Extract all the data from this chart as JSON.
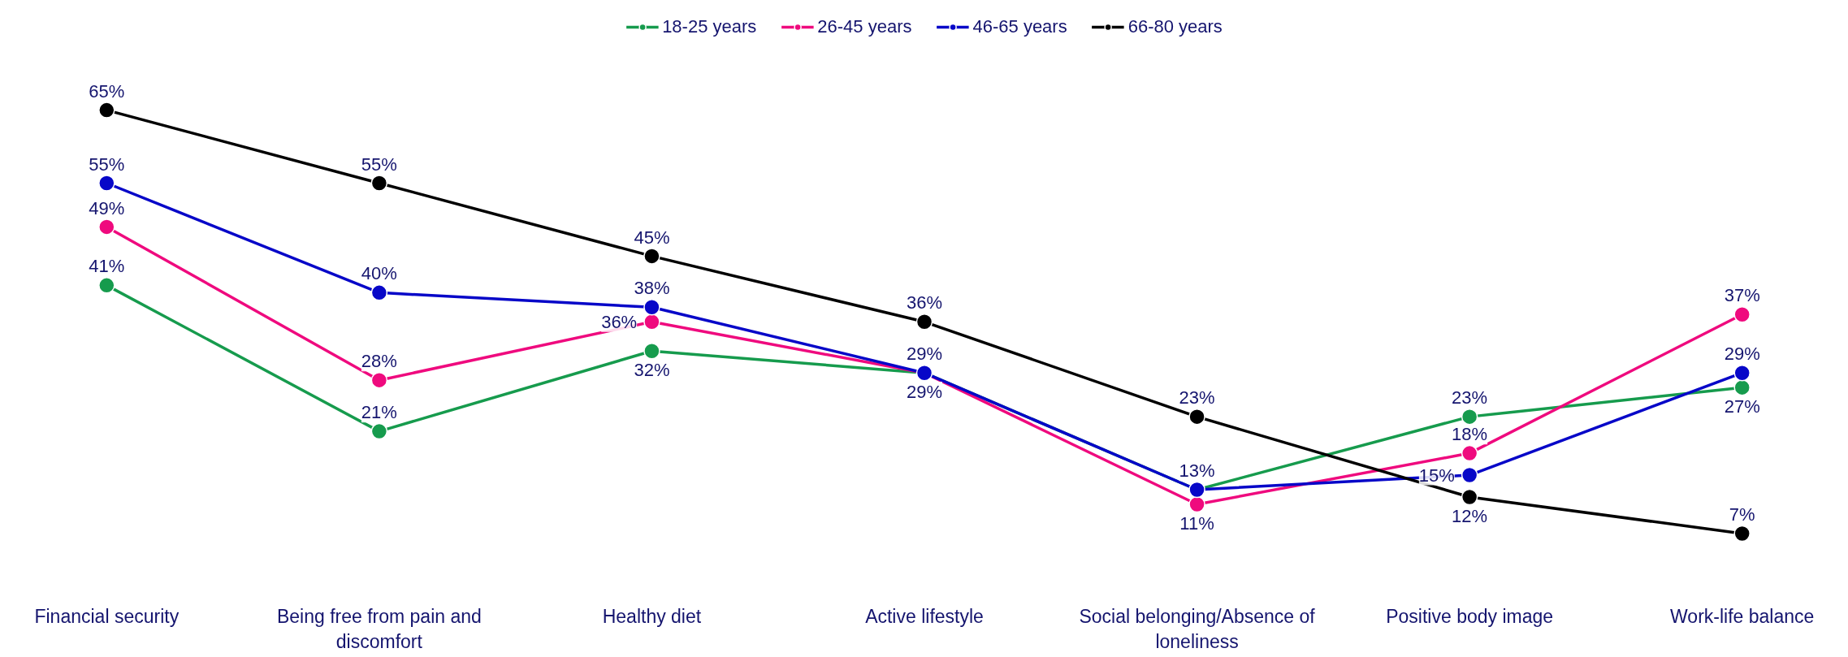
{
  "chart_data": {
    "type": "line",
    "categories": [
      "Financial security",
      "Being free from pain and discomfort",
      "Healthy diet",
      "Active lifestyle",
      "Social belonging/Absence of loneliness",
      "Positive body image",
      "Work-life balance"
    ],
    "series": [
      {
        "name": "18-25 years",
        "color": "#169b4d",
        "values": [
          41,
          21,
          32,
          29,
          13,
          23,
          27
        ],
        "value_labels": [
          "41%",
          "21%",
          "32%",
          null,
          null,
          "23%",
          "27%"
        ]
      },
      {
        "name": "26-45 years",
        "color": "#ef0a7e",
        "values": [
          49,
          28,
          36,
          29,
          11,
          18,
          37
        ],
        "value_labels": [
          "49%",
          "28%",
          "36%",
          "29%",
          "11%",
          "18%",
          "37%"
        ]
      },
      {
        "name": "46-65 years",
        "color": "#0707c8",
        "values": [
          55,
          40,
          38,
          29,
          13,
          15,
          29
        ],
        "value_labels": [
          "55%",
          "40%",
          "38%",
          "29%",
          "13%",
          "15%",
          "29%"
        ]
      },
      {
        "name": "66-80 years",
        "color": "#000000",
        "values": [
          65,
          55,
          45,
          36,
          23,
          12,
          7
        ],
        "value_labels": [
          "65%",
          "55%",
          "45%",
          "36%",
          "23%",
          "12%",
          "7%"
        ]
      }
    ],
    "tick_labels": "x",
    "grid": false,
    "legend": "top",
    "marker": "circle",
    "line_style": "solid"
  }
}
